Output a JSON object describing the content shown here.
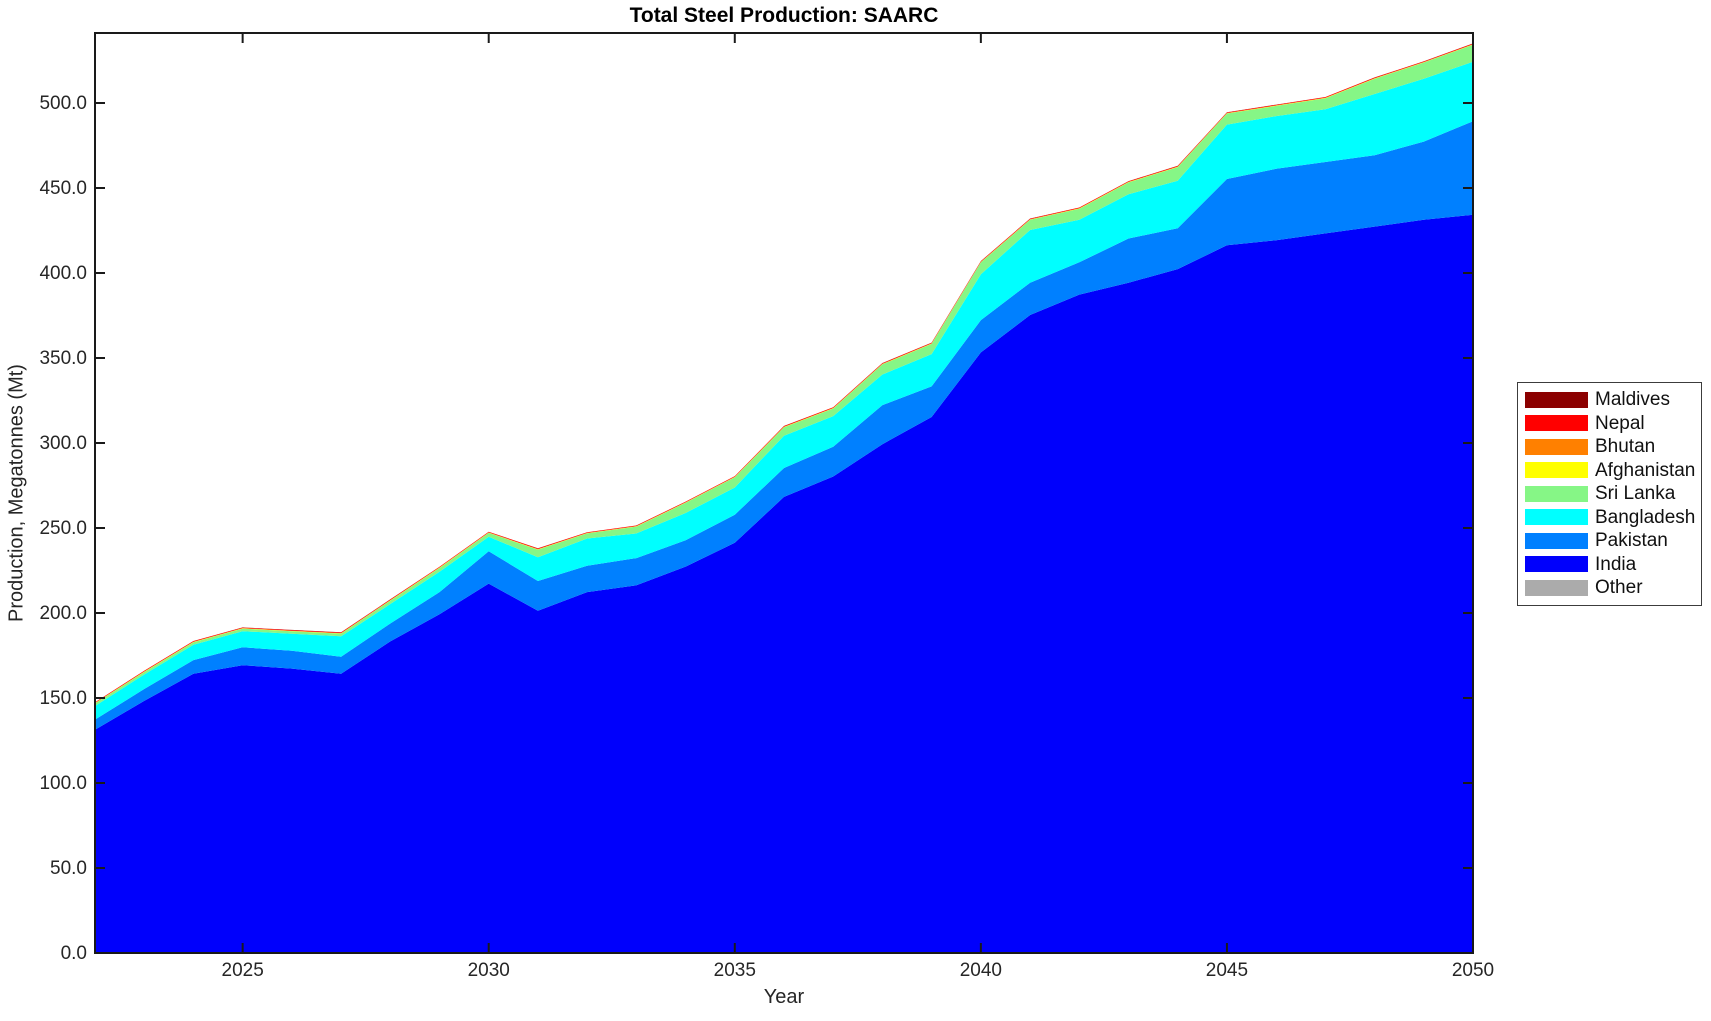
{
  "chart_data": {
    "type": "area",
    "stacked": true,
    "title": "Total Steel Production: SAARC",
    "xlabel": "Year",
    "ylabel": "Production, Megatonnes (Mt)",
    "xlim": [
      2022,
      2050
    ],
    "ylim": [
      0,
      541
    ],
    "grid": false,
    "legend_position": "right-outside",
    "x": [
      2022,
      2023,
      2024,
      2025,
      2026,
      2027,
      2028,
      2029,
      2030,
      2031,
      2032,
      2033,
      2034,
      2035,
      2036,
      2037,
      2038,
      2039,
      2040,
      2041,
      2042,
      2043,
      2044,
      2045,
      2046,
      2047,
      2048,
      2049,
      2050
    ],
    "series": [
      {
        "name": "Other",
        "color": "#ABABAB",
        "constant": 0.3
      },
      {
        "name": "India",
        "color": "#0000FC",
        "values": [
          131,
          148,
          164,
          169,
          167,
          164,
          183,
          199,
          217,
          201,
          212,
          216,
          227,
          241,
          268,
          280,
          299,
          315,
          353,
          375,
          387,
          394,
          402,
          416,
          419,
          423,
          427,
          431,
          434
        ]
      },
      {
        "name": "Pakistan",
        "color": "#0080FF",
        "values": [
          6,
          7,
          8,
          10.5,
          10.5,
          10,
          10.5,
          13,
          19,
          17.5,
          15.5,
          16,
          15.5,
          16.5,
          17,
          17.5,
          23,
          18,
          19,
          19,
          19,
          26,
          24,
          39,
          42,
          42,
          42,
          46,
          55
        ]
      },
      {
        "name": "Bangladesh",
        "color": "#00FFFF",
        "values": [
          8,
          8.5,
          9,
          9.5,
          10,
          12,
          11.5,
          12,
          8.5,
          14,
          16,
          14.5,
          16,
          16,
          19,
          18,
          18,
          19,
          27,
          31,
          25,
          26,
          28,
          32,
          31,
          31,
          36,
          37,
          35
        ]
      },
      {
        "name": "Sri Lanka",
        "color": "#86F686",
        "values": [
          1.5,
          1.5,
          1.5,
          1.5,
          1.5,
          1.6,
          2,
          2.2,
          2.3,
          4.5,
          3,
          4,
          6,
          6,
          5,
          4.5,
          6,
          6,
          7,
          6,
          6.5,
          7,
          8,
          6.5,
          6,
          6.5,
          9,
          9.5,
          10
        ]
      },
      {
        "name": "Afghanistan",
        "color": "#FFFF00",
        "constant": 0.2
      },
      {
        "name": "Bhutan",
        "color": "#FF8000",
        "constant": 0.1
      },
      {
        "name": "Nepal",
        "color": "#FF0000",
        "constant": 0.4
      },
      {
        "name": "Maldives",
        "color": "#8B0000",
        "constant": 0.05
      }
    ],
    "legend": [
      {
        "label": "Maldives",
        "color": "#8B0000"
      },
      {
        "label": "Nepal",
        "color": "#FF0000"
      },
      {
        "label": "Bhutan",
        "color": "#FF8000"
      },
      {
        "label": "Afghanistan",
        "color": "#FFFF00"
      },
      {
        "label": "Sri Lanka",
        "color": "#86F686"
      },
      {
        "label": "Bangladesh",
        "color": "#00FFFF"
      },
      {
        "label": "Pakistan",
        "color": "#0080FF"
      },
      {
        "label": "India",
        "color": "#0000FC"
      },
      {
        "label": "Other",
        "color": "#ABABAB"
      }
    ],
    "x_ticks": [
      {
        "value": 2025,
        "label": "2025"
      },
      {
        "value": 2030,
        "label": "2030"
      },
      {
        "value": 2035,
        "label": "2035"
      },
      {
        "value": 2040,
        "label": "2040"
      },
      {
        "value": 2045,
        "label": "2045"
      },
      {
        "value": 2050,
        "label": "2050"
      }
    ],
    "y_ticks": [
      {
        "value": 0,
        "label": "0.0"
      },
      {
        "value": 50,
        "label": "50.0"
      },
      {
        "value": 100,
        "label": "100.0"
      },
      {
        "value": 150,
        "label": "150.0"
      },
      {
        "value": 200,
        "label": "200.0"
      },
      {
        "value": 250,
        "label": "250.0"
      },
      {
        "value": 300,
        "label": "300.0"
      },
      {
        "value": 350,
        "label": "350.0"
      },
      {
        "value": 400,
        "label": "400.0"
      },
      {
        "value": 450,
        "label": "450.0"
      },
      {
        "value": 500,
        "label": "500.0"
      }
    ],
    "frame_color": "#1a1a1a",
    "text_color": "#262626"
  }
}
